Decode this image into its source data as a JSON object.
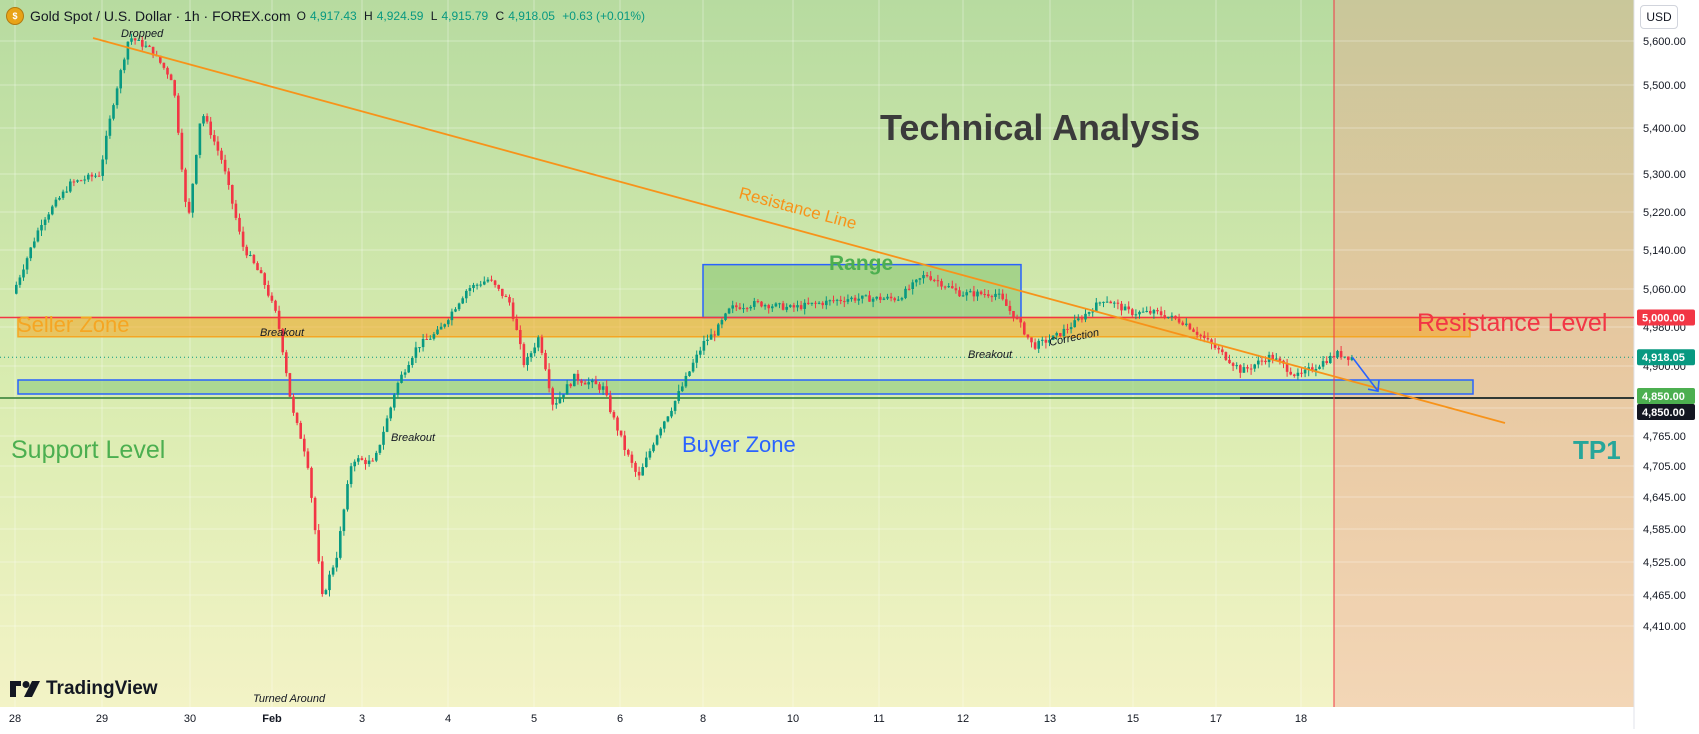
{
  "header": {
    "symbol": "Gold Spot / U.S. Dollar · 1h · FOREX.com",
    "open_label": "O",
    "open": "4,917.43",
    "high_label": "H",
    "high": "4,924.59",
    "low_label": "L",
    "low": "4,915.79",
    "close_label": "C",
    "close": "4,918.05",
    "change": "+0.63 (+0.01%)"
  },
  "currency_button": "USD",
  "brand": "TradingView",
  "colors": {
    "up": "#089981",
    "down": "#f23645",
    "resistance_line": "#f7931a",
    "seller_zone": "#f5a623",
    "buyer_zone": "#2962ff",
    "range_box": "#2962ff",
    "support_text": "#4caf50",
    "resistance_text": "#f23645",
    "tp_text": "#26a69a"
  },
  "annotations": {
    "title": "Technical Analysis",
    "resistance_line": "Resistance Line",
    "range": "Range",
    "seller_zone": "Seller Zone",
    "buyer_zone": "Buyer Zone",
    "support_level": "Support Level",
    "resistance_level": "Resistance Level",
    "tp1": "TP1",
    "dropped": "Dropped",
    "turned_around": "Turned Around",
    "breakout_1": "Breakout",
    "breakout_2": "Breakout",
    "breakout_3": "Breakout",
    "correction": "Correction"
  },
  "price_tags": {
    "resistance": "5,000.00",
    "current": "4,918.05",
    "support": "4,850.00",
    "tp1": "4,850.00"
  },
  "chart_data": {
    "type": "candlestick",
    "y_ticks": [
      "5,600.00",
      "5,500.00",
      "5,400.00",
      "5,300.00",
      "5,220.00",
      "5,140.00",
      "5,060.00",
      "4,980.00",
      "4,900.00",
      "4,825.00",
      "4,765.00",
      "4,705.00",
      "4,645.00",
      "4,585.00",
      "4,525.00",
      "4,465.00",
      "4,410.00"
    ],
    "x_ticks": [
      "28",
      "29",
      "30",
      "Feb",
      "3",
      "4",
      "5",
      "6",
      "8",
      "10",
      "11",
      "12",
      "13",
      "15",
      "17",
      "18"
    ],
    "ohlc_path": [
      [
        "28 00:00",
        5050
      ],
      [
        "28 08:00",
        5200
      ],
      [
        "28 16:00",
        5280
      ],
      [
        "29 00:00",
        5300
      ],
      [
        "29 04:00",
        5470
      ],
      [
        "29 08:00",
        5610
      ],
      [
        "29 14:00",
        5580
      ],
      [
        "29 20:00",
        5510
      ],
      [
        "30 00:00",
        5190
      ],
      [
        "30 04:00",
        5440
      ],
      [
        "30 10:00",
        5330
      ],
      [
        "30 16:00",
        5150
      ],
      [
        "30 22:00",
        5080
      ],
      [
        "Feb 02:00",
        5000
      ],
      [
        "Feb 06:00",
        4820
      ],
      [
        "Feb 10:00",
        4720
      ],
      [
        "Feb 14:00",
        4460
      ],
      [
        "Feb 18:00",
        4540
      ],
      [
        "Feb 22:00",
        4720
      ],
      [
        "3 04:00",
        4710
      ],
      [
        "3 10:00",
        4860
      ],
      [
        "3 16:00",
        4940
      ],
      [
        "3 22:00",
        4970
      ],
      [
        "4 06:00",
        5060
      ],
      [
        "4 12:00",
        5080
      ],
      [
        "4 18:00",
        5030
      ],
      [
        "4 22:00",
        4900
      ],
      [
        "5 02:00",
        4960
      ],
      [
        "5 06:00",
        4830
      ],
      [
        "5 12:00",
        4880
      ],
      [
        "5 20:00",
        4860
      ],
      [
        "6 02:00",
        4740
      ],
      [
        "6 06:00",
        4680
      ],
      [
        "6 12:00",
        4780
      ],
      [
        "6 20:00",
        4880
      ],
      [
        "8 02:00",
        4950
      ],
      [
        "8 08:00",
        4970
      ],
      [
        "8 16:00",
        5020
      ],
      [
        "9 06:00",
        5030
      ],
      [
        "10 00:00",
        5020
      ],
      [
        "10 16:00",
        5040
      ],
      [
        "11 06:00",
        5040
      ],
      [
        "11 14:00",
        5090
      ],
      [
        "12 00:00",
        5050
      ],
      [
        "12 10:00",
        5050
      ],
      [
        "12 16:00",
        4990
      ],
      [
        "12 20:00",
        4940
      ],
      [
        "13 04:00",
        4960
      ],
      [
        "13 14:00",
        4990
      ],
      [
        "14 06:00",
        5040
      ],
      [
        "15 00:00",
        5010
      ],
      [
        "15 16:00",
        5010
      ],
      [
        "16 08:00",
        4990
      ],
      [
        "17 00:00",
        4940
      ],
      [
        "17 08:00",
        4890
      ],
      [
        "17 16:00",
        4920
      ],
      [
        "18 00:00",
        4880
      ],
      [
        "18 12:00",
        4925
      ],
      [
        "18 16:00",
        4918
      ]
    ],
    "levels": {
      "resistance": 5000,
      "support": 4850,
      "tp1": 4850
    },
    "zones": {
      "seller_zone": [
        4960,
        5000
      ],
      "buyer_zone": [
        4850,
        4875
      ],
      "range_box": {
        "from": "8 00:00",
        "to": "12 16:00",
        "low": 5000,
        "high": 5110
      }
    },
    "trendline": {
      "from": [
        "28 20:00",
        5630
      ],
      "to": [
        "18 20:00",
        4855
      ]
    },
    "projection": {
      "from": [
        "18 16:00",
        4918
      ],
      "to": [
        "19 00:00",
        4855
      ]
    },
    "ylim": [
      4380,
      5640
    ],
    "grid": true
  }
}
